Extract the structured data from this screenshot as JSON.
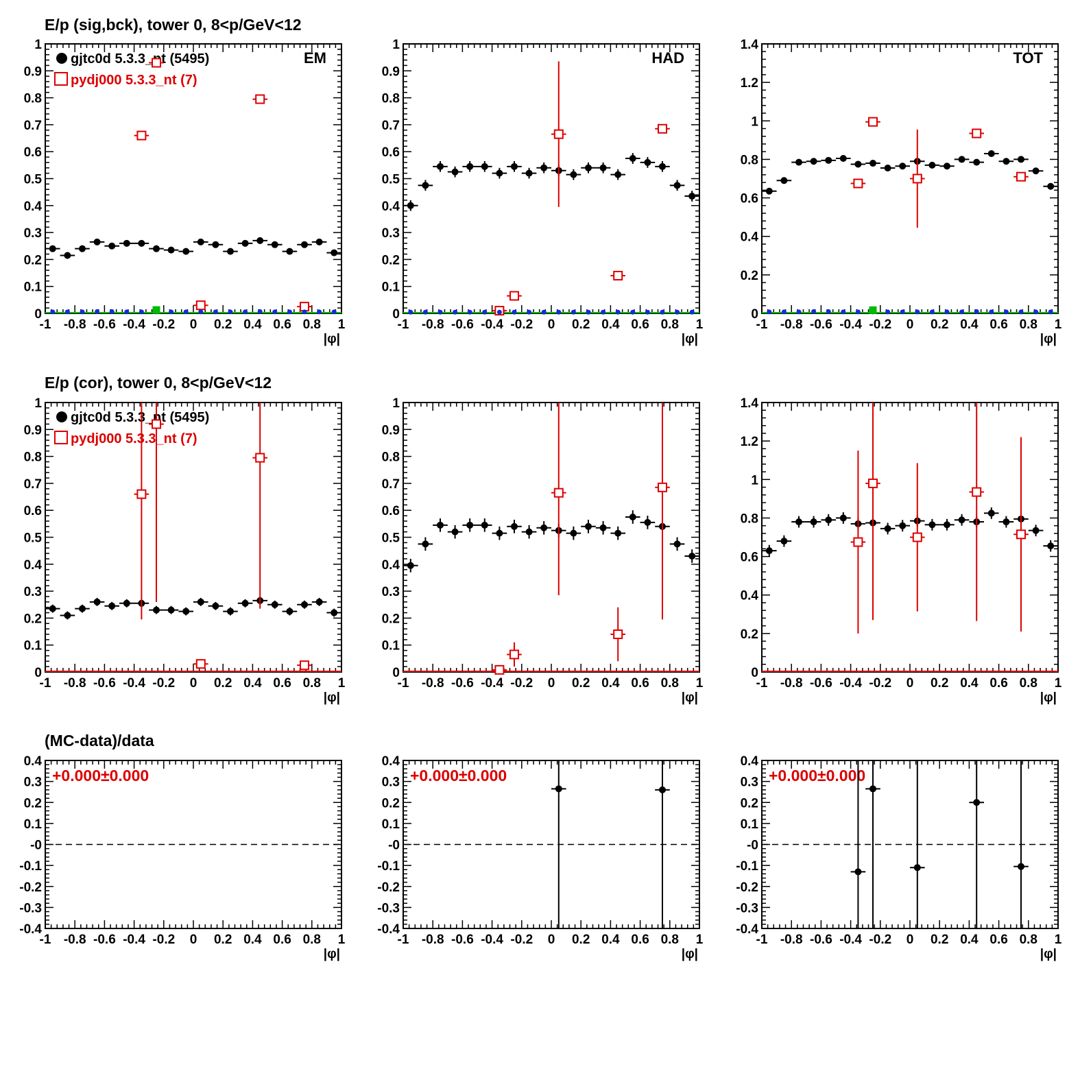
{
  "row_titles": [
    "E/p (sig,bck), tower 0,  8<p/GeV<12",
    "E/p (cor), tower 0,  8<p/GeV<12",
    "(MC-data)/data"
  ],
  "legend": {
    "data_label": "gjtc0d 5.3.3_nt (5495)",
    "mc_label": "pydj000 5.3.3_nt (7)"
  },
  "panel_labels": [
    "EM",
    "HAD",
    "TOT"
  ],
  "x_axis_label": "|φ|",
  "ratio_annotation": "+0.000±0.000",
  "colors": {
    "data": "#000000",
    "mc": "#dd0000",
    "bkg_blue": "#1030d0",
    "bkg_green": "#00bb00",
    "frame": "#000000"
  },
  "chart_data": [
    {
      "type": "scatter",
      "panel": "sig-bck-EM",
      "xlim": [
        -1,
        1
      ],
      "ylim": [
        0,
        1
      ],
      "yticks": [
        "0",
        "0.1",
        "0.2",
        "0.3",
        "0.4",
        "0.5",
        "0.6",
        "0.7",
        "0.8",
        "0.9",
        "1"
      ],
      "xticks": [
        "-1",
        "-0.8",
        "-0.6",
        "-0.4",
        "-0.2",
        "0",
        "0.2",
        "0.4",
        "0.6",
        "0.8",
        "1"
      ],
      "series": [
        {
          "name": "gjtc0d 5.3.3_nt (5495)",
          "style": "data",
          "x": [
            -0.95,
            -0.85,
            -0.75,
            -0.65,
            -0.55,
            -0.45,
            -0.35,
            -0.25,
            -0.15,
            -0.05,
            0.05,
            0.15,
            0.25,
            0.35,
            0.45,
            0.55,
            0.65,
            0.75,
            0.85,
            0.95
          ],
          "y": [
            0.24,
            0.215,
            0.24,
            0.265,
            0.25,
            0.26,
            0.26,
            0.24,
            0.235,
            0.23,
            0.265,
            0.255,
            0.23,
            0.26,
            0.27,
            0.255,
            0.23,
            0.255,
            0.265,
            0.225
          ],
          "err": [
            0.012,
            0.012,
            0.012,
            0.012,
            0.012,
            0.012,
            0.012,
            0.012,
            0.012,
            0.012,
            0.012,
            0.012,
            0.012,
            0.012,
            0.012,
            0.012,
            0.012,
            0.012,
            0.012,
            0.012
          ]
        },
        {
          "name": "pydj000 5.3.3_nt (7)",
          "style": "mc",
          "x": [
            -0.35,
            -0.25,
            0.05,
            0.45,
            0.75
          ],
          "y": [
            0.66,
            0.93,
            0.03,
            0.795,
            0.025
          ],
          "err": [
            0,
            0,
            0,
            0,
            0
          ]
        },
        {
          "style": "bkg_blue",
          "x": [
            -0.95,
            -0.85,
            -0.75,
            -0.65,
            -0.55,
            -0.45,
            -0.35,
            -0.25,
            -0.15,
            -0.05,
            0.05,
            0.15,
            0.25,
            0.35,
            0.45,
            0.55,
            0.65,
            0.75,
            0.85,
            0.95
          ],
          "y": [
            0.003,
            0.003,
            0.003,
            0.004,
            0.004,
            0.003,
            0.003,
            0.003,
            0.003,
            0.003,
            0.003,
            0.003,
            0.003,
            0.003,
            0.004,
            0.003,
            0.003,
            0.003,
            0.003,
            0.003
          ]
        },
        {
          "style": "bkg_green",
          "x": [
            -0.25
          ],
          "y": [
            0.005
          ]
        }
      ]
    },
    {
      "type": "scatter",
      "panel": "sig-bck-HAD",
      "xlim": [
        -1,
        1
      ],
      "ylim": [
        0,
        1
      ],
      "yticks": [
        "0",
        "0.1",
        "0.2",
        "0.3",
        "0.4",
        "0.5",
        "0.6",
        "0.7",
        "0.8",
        "0.9",
        "1"
      ],
      "xticks": [
        "-1",
        "-0.8",
        "-0.6",
        "-0.4",
        "-0.2",
        "0",
        "0.2",
        "0.4",
        "0.6",
        "0.8",
        "1"
      ],
      "series": [
        {
          "name": "gjtc0d 5.3.3_nt (5495)",
          "style": "data",
          "x": [
            -0.95,
            -0.85,
            -0.75,
            -0.65,
            -0.55,
            -0.45,
            -0.35,
            -0.25,
            -0.15,
            -0.05,
            0.05,
            0.15,
            0.25,
            0.35,
            0.45,
            0.55,
            0.65,
            0.75,
            0.85,
            0.95
          ],
          "y": [
            0.4,
            0.475,
            0.545,
            0.525,
            0.545,
            0.545,
            0.52,
            0.545,
            0.52,
            0.54,
            0.53,
            0.515,
            0.54,
            0.54,
            0.515,
            0.575,
            0.56,
            0.545,
            0.475,
            0.435
          ],
          "err": [
            0.02,
            0.02,
            0.02,
            0.02,
            0.02,
            0.02,
            0.02,
            0.02,
            0.02,
            0.02,
            0.02,
            0.02,
            0.02,
            0.02,
            0.02,
            0.02,
            0.02,
            0.02,
            0.02,
            0.02
          ]
        },
        {
          "name": "pydj000 5.3.3_nt (7)",
          "style": "mc",
          "x": [
            -0.35,
            -0.25,
            0.05,
            0.45,
            0.75
          ],
          "y": [
            0.01,
            0.065,
            0.665,
            0.14,
            0.685
          ],
          "err": [
            0,
            0,
            0.27,
            0,
            0
          ]
        },
        {
          "style": "bkg_blue",
          "x": [
            -0.95,
            -0.85,
            -0.75,
            -0.65,
            -0.55,
            -0.45,
            -0.35,
            -0.25,
            -0.15,
            -0.05,
            0.05,
            0.15,
            0.25,
            0.35,
            0.45,
            0.55,
            0.65,
            0.75,
            0.85,
            0.95
          ],
          "y": [
            0.002,
            0.002,
            0.002,
            0.002,
            0.002,
            0.002,
            0.002,
            0.002,
            0.002,
            0.002,
            0.002,
            0.002,
            0.002,
            0.002,
            0.002,
            0.002,
            0.002,
            0.002,
            0.002,
            0.002
          ]
        }
      ]
    },
    {
      "type": "scatter",
      "panel": "sig-bck-TOT",
      "xlim": [
        -1,
        1
      ],
      "ylim": [
        0,
        1.4
      ],
      "yticks": [
        "0",
        "0.2",
        "0.4",
        "0.6",
        "0.8",
        "1",
        "1.2",
        "1.4"
      ],
      "xticks": [
        "-1",
        "-0.8",
        "-0.6",
        "-0.4",
        "-0.2",
        "0",
        "0.2",
        "0.4",
        "0.6",
        "0.8",
        "1"
      ],
      "series": [
        {
          "name": "gjtc0d 5.3.3_nt (5495)",
          "style": "data",
          "x": [
            -0.95,
            -0.85,
            -0.75,
            -0.65,
            -0.55,
            -0.45,
            -0.35,
            -0.25,
            -0.15,
            -0.05,
            0.05,
            0.15,
            0.25,
            0.35,
            0.45,
            0.55,
            0.65,
            0.75,
            0.85,
            0.95
          ],
          "y": [
            0.635,
            0.69,
            0.785,
            0.79,
            0.795,
            0.805,
            0.775,
            0.78,
            0.755,
            0.765,
            0.79,
            0.77,
            0.765,
            0.8,
            0.785,
            0.83,
            0.79,
            0.8,
            0.74,
            0.66
          ],
          "err": [
            0.014,
            0.014,
            0.014,
            0.014,
            0.014,
            0.014,
            0.014,
            0.014,
            0.014,
            0.014,
            0.014,
            0.014,
            0.014,
            0.014,
            0.014,
            0.014,
            0.014,
            0.014,
            0.014,
            0.014
          ]
        },
        {
          "name": "pydj000 5.3.3_nt (7)",
          "style": "mc",
          "x": [
            -0.35,
            -0.25,
            0.05,
            0.45,
            0.75
          ],
          "y": [
            0.675,
            0.995,
            0.7,
            0.935,
            0.71
          ],
          "err": [
            0,
            0,
            0.255,
            0,
            0
          ]
        },
        {
          "style": "bkg_blue",
          "x": [
            -0.95,
            -0.85,
            -0.75,
            -0.65,
            -0.55,
            -0.45,
            -0.35,
            -0.25,
            -0.15,
            -0.05,
            0.05,
            0.15,
            0.25,
            0.35,
            0.45,
            0.55,
            0.65,
            0.75,
            0.85,
            0.95
          ],
          "y": [
            0.004,
            0.004,
            0.004,
            0.006,
            0.006,
            0.004,
            0.004,
            0.004,
            0.004,
            0.004,
            0.004,
            0.004,
            0.004,
            0.004,
            0.006,
            0.004,
            0.004,
            0.004,
            0.004,
            0.004
          ]
        },
        {
          "style": "bkg_green",
          "x": [
            -0.25
          ],
          "y": [
            0.006
          ]
        }
      ]
    },
    {
      "type": "scatter",
      "panel": "cor-EM",
      "xlim": [
        -1,
        1
      ],
      "ylim": [
        0,
        1
      ],
      "yticks": [
        "0",
        "0.1",
        "0.2",
        "0.3",
        "0.4",
        "0.5",
        "0.6",
        "0.7",
        "0.8",
        "0.9",
        "1"
      ],
      "xticks": [
        "-1",
        "-0.8",
        "-0.6",
        "-0.4",
        "-0.2",
        "0",
        "0.2",
        "0.4",
        "0.6",
        "0.8",
        "1"
      ],
      "series": [
        {
          "name": "gjtc0d 5.3.3_nt (5495)",
          "style": "data",
          "x": [
            -0.95,
            -0.85,
            -0.75,
            -0.65,
            -0.55,
            -0.45,
            -0.35,
            -0.25,
            -0.15,
            -0.05,
            0.05,
            0.15,
            0.25,
            0.35,
            0.45,
            0.55,
            0.65,
            0.75,
            0.85,
            0.95
          ],
          "y": [
            0.235,
            0.21,
            0.235,
            0.26,
            0.245,
            0.255,
            0.255,
            0.23,
            0.23,
            0.225,
            0.26,
            0.245,
            0.225,
            0.255,
            0.265,
            0.25,
            0.225,
            0.25,
            0.26,
            0.22
          ],
          "err": [
            0.015,
            0.015,
            0.015,
            0.015,
            0.015,
            0.015,
            0.015,
            0.015,
            0.015,
            0.015,
            0.015,
            0.015,
            0.015,
            0.015,
            0.015,
            0.015,
            0.015,
            0.015,
            0.015,
            0.015
          ]
        },
        {
          "name": "pydj000 5.3.3_nt (7)",
          "style": "mc",
          "x": [
            -0.35,
            -0.25,
            0.05,
            0.45,
            0.75
          ],
          "y": [
            0.66,
            0.92,
            0.03,
            0.795,
            0.025
          ],
          "err": [
            0.465,
            0.66,
            0,
            0.56,
            0
          ]
        }
      ]
    },
    {
      "type": "scatter",
      "panel": "cor-HAD",
      "xlim": [
        -1,
        1
      ],
      "ylim": [
        0,
        1
      ],
      "yticks": [
        "0",
        "0.1",
        "0.2",
        "0.3",
        "0.4",
        "0.5",
        "0.6",
        "0.7",
        "0.8",
        "0.9",
        "1"
      ],
      "xticks": [
        "-1",
        "-0.8",
        "-0.6",
        "-0.4",
        "-0.2",
        "0",
        "0.2",
        "0.4",
        "0.6",
        "0.8",
        "1"
      ],
      "series": [
        {
          "name": "gjtc0d 5.3.3_nt (5495)",
          "style": "data",
          "x": [
            -0.95,
            -0.85,
            -0.75,
            -0.65,
            -0.55,
            -0.45,
            -0.35,
            -0.25,
            -0.15,
            -0.05,
            0.05,
            0.15,
            0.25,
            0.35,
            0.45,
            0.55,
            0.65,
            0.75,
            0.85,
            0.95
          ],
          "y": [
            0.395,
            0.475,
            0.545,
            0.52,
            0.545,
            0.545,
            0.515,
            0.54,
            0.52,
            0.535,
            0.525,
            0.515,
            0.54,
            0.535,
            0.515,
            0.575,
            0.555,
            0.54,
            0.475,
            0.43
          ],
          "err": [
            0.025,
            0.025,
            0.025,
            0.025,
            0.025,
            0.025,
            0.025,
            0.025,
            0.025,
            0.025,
            0.025,
            0.025,
            0.025,
            0.025,
            0.025,
            0.025,
            0.025,
            0.025,
            0.025,
            0.025
          ]
        },
        {
          "name": "pydj000 5.3.3_nt (7)",
          "style": "mc",
          "x": [
            -0.35,
            -0.25,
            0.05,
            0.45,
            0.75
          ],
          "y": [
            0.008,
            0.065,
            0.665,
            0.14,
            0.685
          ],
          "err": [
            0,
            0.045,
            0.38,
            0.1,
            0.49
          ]
        }
      ]
    },
    {
      "type": "scatter",
      "panel": "cor-TOT",
      "xlim": [
        -1,
        1
      ],
      "ylim": [
        0,
        1.4
      ],
      "yticks": [
        "0",
        "0.2",
        "0.4",
        "0.6",
        "0.8",
        "1",
        "1.2",
        "1.4"
      ],
      "xticks": [
        "-1",
        "-0.8",
        "-0.6",
        "-0.4",
        "-0.2",
        "0",
        "0.2",
        "0.4",
        "0.6",
        "0.8",
        "1"
      ],
      "series": [
        {
          "name": "gjtc0d 5.3.3_nt (5495)",
          "style": "data",
          "x": [
            -0.95,
            -0.85,
            -0.75,
            -0.65,
            -0.55,
            -0.45,
            -0.35,
            -0.25,
            -0.15,
            -0.05,
            0.05,
            0.15,
            0.25,
            0.35,
            0.45,
            0.55,
            0.65,
            0.75,
            0.85,
            0.95
          ],
          "y": [
            0.63,
            0.68,
            0.78,
            0.78,
            0.79,
            0.8,
            0.77,
            0.775,
            0.745,
            0.76,
            0.785,
            0.765,
            0.765,
            0.79,
            0.78,
            0.825,
            0.78,
            0.795,
            0.735,
            0.655
          ],
          "err": [
            0.03,
            0.03,
            0.03,
            0.03,
            0.03,
            0.03,
            0.03,
            0.03,
            0.03,
            0.03,
            0.03,
            0.03,
            0.03,
            0.03,
            0.03,
            0.03,
            0.03,
            0.03,
            0.03,
            0.03
          ]
        },
        {
          "name": "pydj000 5.3.3_nt (7)",
          "style": "mc",
          "x": [
            -0.35,
            -0.25,
            0.05,
            0.45,
            0.75
          ],
          "y": [
            0.675,
            0.98,
            0.7,
            0.935,
            0.715
          ],
          "err": [
            0.475,
            0.71,
            0.385,
            0.67,
            0.505
          ]
        }
      ]
    },
    {
      "type": "scatter",
      "panel": "ratio-EM",
      "xlim": [
        -1,
        1
      ],
      "ylim": [
        -0.4,
        0.4
      ],
      "yticks": [
        "-0.4",
        "-0.3",
        "-0.2",
        "-0.1",
        "-0",
        "0.1",
        "0.2",
        "0.3",
        "0.4"
      ],
      "xticks": [
        "-1",
        "-0.8",
        "-0.6",
        "-0.4",
        "-0.2",
        "0",
        "0.2",
        "0.4",
        "0.6",
        "0.8",
        "1"
      ],
      "series": [
        {
          "style": "ratio",
          "x": [],
          "y": [],
          "err": []
        }
      ]
    },
    {
      "type": "scatter",
      "panel": "ratio-HAD",
      "xlim": [
        -1,
        1
      ],
      "ylim": [
        -0.4,
        0.4
      ],
      "yticks": [
        "-0.4",
        "-0.3",
        "-0.2",
        "-0.1",
        "-0",
        "0.1",
        "0.2",
        "0.3",
        "0.4"
      ],
      "xticks": [
        "-1",
        "-0.8",
        "-0.6",
        "-0.4",
        "-0.2",
        "0",
        "0.2",
        "0.4",
        "0.6",
        "0.8",
        "1"
      ],
      "series": [
        {
          "style": "ratio",
          "x": [
            0.05,
            0.75
          ],
          "y": [
            0.265,
            0.26
          ],
          "err": [
            1.0,
            1.0
          ]
        }
      ]
    },
    {
      "type": "scatter",
      "panel": "ratio-TOT",
      "xlim": [
        -1,
        1
      ],
      "ylim": [
        -0.4,
        0.4
      ],
      "yticks": [
        "-0.4",
        "-0.3",
        "-0.2",
        "-0.1",
        "-0",
        "0.1",
        "0.2",
        "0.3",
        "0.4"
      ],
      "xticks": [
        "-1",
        "-0.8",
        "-0.6",
        "-0.4",
        "-0.2",
        "0",
        "0.2",
        "0.4",
        "0.6",
        "0.8",
        "1"
      ],
      "series": [
        {
          "style": "ratio",
          "x": [
            -0.35,
            -0.25,
            0.05,
            0.45,
            0.75
          ],
          "y": [
            -0.13,
            0.265,
            -0.11,
            0.2,
            -0.105
          ],
          "err": [
            1.0,
            1.0,
            1.0,
            1.0,
            1.0
          ]
        }
      ]
    }
  ]
}
